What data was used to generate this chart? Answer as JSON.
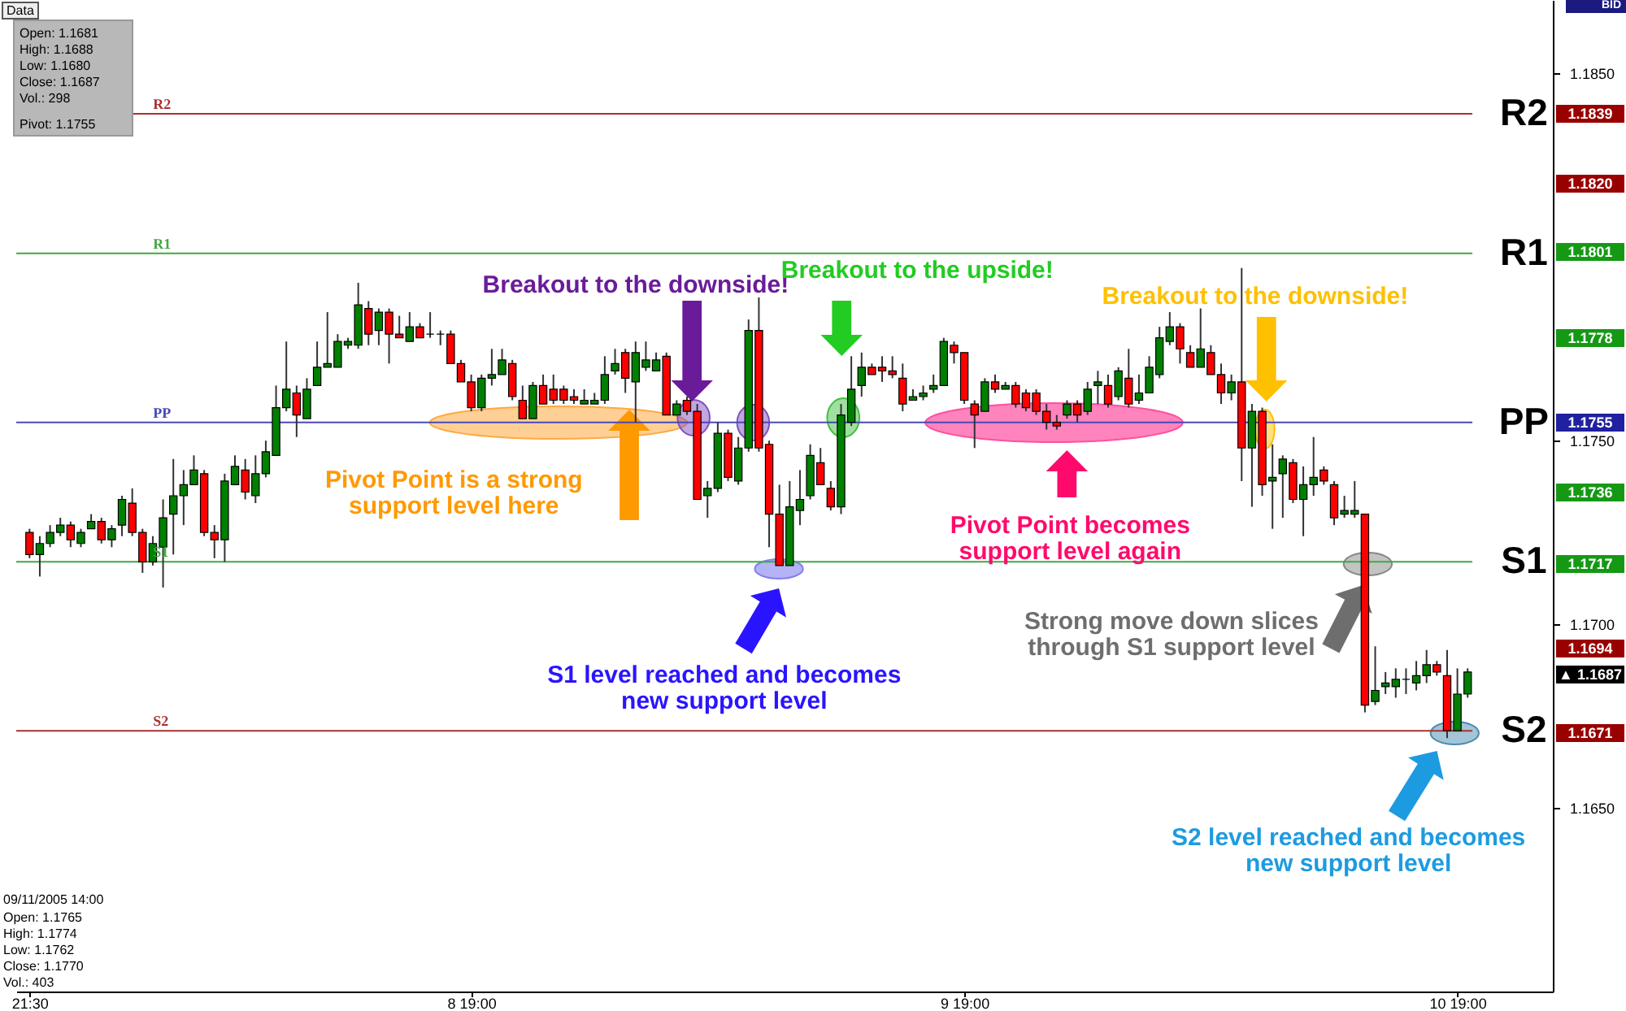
{
  "chart_data": {
    "type": "candlestick",
    "categories": [
      "21:30",
      null,
      null,
      null,
      null,
      null,
      null,
      null,
      null,
      null,
      null,
      null,
      null,
      null,
      null,
      null,
      null,
      null,
      null,
      null,
      null,
      null,
      null,
      null,
      null,
      null,
      null,
      null,
      null,
      null,
      null,
      null,
      null,
      null,
      null,
      null,
      null,
      null,
      null,
      null,
      null,
      null,
      null,
      "8 19:00",
      null,
      null,
      null,
      null,
      null,
      null,
      null,
      null,
      null,
      null,
      null,
      null,
      null,
      null,
      null,
      null,
      null,
      null,
      null,
      null,
      null,
      null,
      null,
      null,
      null,
      null,
      null,
      null,
      null,
      null,
      null,
      null,
      null,
      null,
      null,
      null,
      null,
      null,
      null,
      null,
      null,
      null,
      null,
      null,
      null,
      null,
      null,
      "9 19:00",
      null,
      null,
      null,
      null,
      null,
      null,
      null,
      null,
      null,
      null,
      null,
      null,
      null,
      null,
      null,
      null,
      null,
      null,
      null,
      null,
      null,
      null,
      null,
      null,
      null,
      null,
      null,
      null,
      null,
      null,
      null,
      null,
      null,
      null,
      null,
      null,
      null,
      null,
      null,
      null,
      null,
      null,
      null,
      null,
      null,
      null,
      null,
      "10 19:00",
      null,
      null,
      null,
      null,
      null,
      null,
      null,
      null
    ],
    "ohlc": [
      [
        1.1725,
        1.1726,
        1.1718,
        1.1719
      ],
      [
        1.1719,
        1.1724,
        1.1713,
        1.1722
      ],
      [
        1.1722,
        1.1727,
        1.1721,
        1.1725
      ],
      [
        1.1725,
        1.1729,
        1.1724,
        1.1727
      ],
      [
        1.1727,
        1.1728,
        1.1721,
        1.1723
      ],
      [
        1.1722,
        1.1726,
        1.1721,
        1.1725
      ],
      [
        1.1726,
        1.173,
        1.1726,
        1.1728
      ],
      [
        1.1728,
        1.1729,
        1.1722,
        1.1723
      ],
      [
        1.1723,
        1.1727,
        1.1721,
        1.1726
      ],
      [
        1.1727,
        1.1735,
        1.1724,
        1.1734
      ],
      [
        1.1733,
        1.1737,
        1.1724,
        1.1725
      ],
      [
        1.1725,
        1.1726,
        1.1714,
        1.1717
      ],
      [
        1.1717,
        1.1724,
        1.1716,
        1.1722
      ],
      [
        1.1721,
        1.1734,
        1.171,
        1.1729
      ],
      [
        1.173,
        1.1745,
        1.1719,
        1.1735
      ],
      [
        1.1735,
        1.1742,
        1.1727,
        1.1738
      ],
      [
        1.1738,
        1.1746,
        1.1738,
        1.1742
      ],
      [
        1.1741,
        1.1742,
        1.1724,
        1.1725
      ],
      [
        1.1725,
        1.1727,
        1.1718,
        1.1723
      ],
      [
        1.1723,
        1.1741,
        1.1717,
        1.1739
      ],
      [
        1.1738,
        1.1746,
        1.1738,
        1.1743
      ],
      [
        1.1742,
        1.1745,
        1.1734,
        1.1736
      ],
      [
        1.1735,
        1.1746,
        1.1733,
        1.1741
      ],
      [
        1.1741,
        1.175,
        1.174,
        1.1747
      ],
      [
        1.1746,
        1.1765,
        1.1746,
        1.1759
      ],
      [
        1.1759,
        1.1777,
        1.1758,
        1.1764
      ],
      [
        1.1763,
        1.1765,
        1.1751,
        1.1757
      ],
      [
        1.1756,
        1.1767,
        1.1756,
        1.1764
      ],
      [
        1.1765,
        1.1777,
        1.1765,
        1.177
      ],
      [
        1.177,
        1.1785,
        1.177,
        1.1771
      ],
      [
        1.177,
        1.1779,
        1.177,
        1.1777
      ],
      [
        1.1776,
        1.1778,
        1.1775,
        1.1777
      ],
      [
        1.1776,
        1.1793,
        1.1775,
        1.1787
      ],
      [
        1.1786,
        1.1788,
        1.1776,
        1.1779
      ],
      [
        1.178,
        1.1786,
        1.1776,
        1.1785
      ],
      [
        1.1785,
        1.1786,
        1.1771,
        1.1779
      ],
      [
        1.1779,
        1.1784,
        1.1778,
        1.1778
      ],
      [
        1.1777,
        1.1785,
        1.1777,
        1.1781
      ],
      [
        1.1781,
        1.1782,
        1.1778,
        1.1778
      ],
      [
        1.1779,
        1.1785,
        1.1778,
        1.1779
      ],
      [
        1.1779,
        1.178,
        1.1776,
        1.1779
      ],
      [
        1.1779,
        1.178,
        1.1771,
        1.1771
      ],
      [
        1.1771,
        1.1772,
        1.1766,
        1.1766
      ],
      [
        1.1766,
        1.1768,
        1.1758,
        1.1759
      ],
      [
        1.1759,
        1.1768,
        1.1758,
        1.1767
      ],
      [
        1.1767,
        1.1775,
        1.1765,
        1.1768
      ],
      [
        1.1768,
        1.1775,
        1.1768,
        1.1772
      ],
      [
        1.1771,
        1.1772,
        1.1761,
        1.1762
      ],
      [
        1.1761,
        1.1765,
        1.1756,
        1.1756
      ],
      [
        1.1756,
        1.1766,
        1.1756,
        1.1765
      ],
      [
        1.1765,
        1.1768,
        1.176,
        1.176
      ],
      [
        1.1764,
        1.1768,
        1.176,
        1.1761
      ],
      [
        1.1764,
        1.1765,
        1.176,
        1.1761
      ],
      [
        1.1762,
        1.1764,
        1.176,
        1.1761
      ],
      [
        1.176,
        1.1764,
        1.176,
        1.1761
      ],
      [
        1.176,
        1.1763,
        1.176,
        1.1761
      ],
      [
        1.1761,
        1.1773,
        1.176,
        1.1768
      ],
      [
        1.1769,
        1.1775,
        1.1768,
        1.1771
      ],
      [
        1.1774,
        1.1775,
        1.1763,
        1.1767
      ],
      [
        1.1766,
        1.1777,
        1.1755,
        1.1774
      ],
      [
        1.177,
        1.1777,
        1.1769,
        1.1772
      ],
      [
        1.1769,
        1.1774,
        1.1769,
        1.1772
      ],
      [
        1.1773,
        1.1774,
        1.1757,
        1.1757
      ],
      [
        1.1757,
        1.1761,
        1.1757,
        1.176
      ],
      [
        1.1761,
        1.1762,
        1.1757,
        1.1758
      ],
      [
        1.1758,
        1.176,
        1.1734,
        1.1734
      ],
      [
        1.1735,
        1.1739,
        1.1729,
        1.1737
      ],
      [
        1.1737,
        1.1755,
        1.1736,
        1.1752
      ],
      [
        1.1752,
        1.1753,
        1.1739,
        1.174
      ],
      [
        1.1739,
        1.1751,
        1.1738,
        1.1748
      ],
      [
        1.1748,
        1.1783,
        1.1747,
        1.178
      ],
      [
        1.178,
        1.1789,
        1.1747,
        1.1748
      ],
      [
        1.1749,
        1.175,
        1.1721,
        1.173
      ],
      [
        1.173,
        1.1738,
        1.1716,
        1.1716
      ],
      [
        1.1716,
        1.1739,
        1.1716,
        1.1732
      ],
      [
        1.1731,
        1.1742,
        1.1727,
        1.1734
      ],
      [
        1.1735,
        1.1749,
        1.1734,
        1.1746
      ],
      [
        1.1744,
        1.1748,
        1.1738,
        1.1738
      ],
      [
        1.1737,
        1.1739,
        1.1731,
        1.1732
      ],
      [
        1.1732,
        1.176,
        1.173,
        1.1757
      ],
      [
        1.1755,
        1.1773,
        1.1754,
        1.1764
      ],
      [
        1.1765,
        1.1774,
        1.1762,
        1.177
      ],
      [
        1.177,
        1.1771,
        1.1768,
        1.1768
      ],
      [
        1.177,
        1.1773,
        1.1766,
        1.1769
      ],
      [
        1.1769,
        1.1773,
        1.1767,
        1.1768
      ],
      [
        1.1767,
        1.1771,
        1.1758,
        1.176
      ],
      [
        1.1761,
        1.1764,
        1.1761,
        1.1762
      ],
      [
        1.1762,
        1.1765,
        1.1761,
        1.1763
      ],
      [
        1.1764,
        1.1768,
        1.1763,
        1.1765
      ],
      [
        1.1765,
        1.1778,
        1.1765,
        1.1777
      ],
      [
        1.1776,
        1.1777,
        1.1771,
        1.1774
      ],
      [
        1.1774,
        1.1774,
        1.176,
        1.1761
      ],
      [
        1.176,
        1.1761,
        1.1748,
        1.1757
      ],
      [
        1.1758,
        1.1767,
        1.1758,
        1.1766
      ],
      [
        1.1766,
        1.1768,
        1.1763,
        1.1764
      ],
      [
        1.1764,
        1.1766,
        1.1764,
        1.1765
      ],
      [
        1.1765,
        1.1766,
        1.1759,
        1.176
      ],
      [
        1.1763,
        1.1764,
        1.1758,
        1.1759
      ],
      [
        1.1763,
        1.1764,
        1.1757,
        1.1758
      ],
      [
        1.1758,
        1.176,
        1.1753,
        1.1755
      ],
      [
        1.1755,
        1.1757,
        1.1753,
        1.1754
      ],
      [
        1.1757,
        1.1761,
        1.1756,
        1.176
      ],
      [
        1.176,
        1.1761,
        1.1755,
        1.1757
      ],
      [
        1.1758,
        1.1766,
        1.1757,
        1.1764
      ],
      [
        1.1765,
        1.1769,
        1.176,
        1.1766
      ],
      [
        1.1765,
        1.1768,
        1.1759,
        1.176
      ],
      [
        1.1762,
        1.177,
        1.1761,
        1.1769
      ],
      [
        1.1767,
        1.1775,
        1.1759,
        1.176
      ],
      [
        1.1761,
        1.1768,
        1.176,
        1.1763
      ],
      [
        1.1763,
        1.1773,
        1.1763,
        1.177
      ],
      [
        1.1768,
        1.1781,
        1.1767,
        1.1778
      ],
      [
        1.1777,
        1.1785,
        1.1776,
        1.1781
      ],
      [
        1.1781,
        1.1782,
        1.1771,
        1.1775
      ],
      [
        1.1774,
        1.1776,
        1.177,
        1.177
      ],
      [
        1.177,
        1.1786,
        1.177,
        1.1775
      ],
      [
        1.1774,
        1.1776,
        1.1768,
        1.1768
      ],
      [
        1.1768,
        1.1771,
        1.176,
        1.1763
      ],
      [
        1.1763,
        1.1768,
        1.1761,
        1.1766
      ],
      [
        1.1766,
        1.1797,
        1.1739,
        1.1748
      ],
      [
        1.1748,
        1.176,
        1.1732,
        1.1758
      ],
      [
        1.1758,
        1.1759,
        1.1735,
        1.1738
      ],
      [
        1.1739,
        1.1749,
        1.1726,
        1.174
      ],
      [
        1.1741,
        1.1746,
        1.1729,
        1.1745
      ],
      [
        1.1744,
        1.1745,
        1.1733,
        1.1734
      ],
      [
        1.1734,
        1.1743,
        1.1724,
        1.1738
      ],
      [
        1.1738,
        1.1751,
        1.1735,
        1.174
      ],
      [
        1.1742,
        1.1743,
        1.1738,
        1.1739
      ],
      [
        1.1738,
        1.1739,
        1.1727,
        1.1729
      ],
      [
        1.173,
        1.1735,
        1.1729,
        1.1731
      ],
      [
        1.173,
        1.1739,
        1.1729,
        1.1731
      ],
      [
        1.173,
        1.173,
        1.1676,
        1.1678
      ],
      [
        1.1679,
        1.1694,
        1.1678,
        1.1682
      ],
      [
        1.1683,
        1.1687,
        1.1681,
        1.1684
      ],
      [
        1.1683,
        1.1688,
        1.168,
        1.1685
      ],
      [
        1.1685,
        1.1688,
        1.1681,
        1.1685
      ],
      [
        1.1684,
        1.169,
        1.1682,
        1.1686
      ],
      [
        1.1686,
        1.1693,
        1.1684,
        1.1689
      ],
      [
        1.1689,
        1.169,
        1.1686,
        1.1687
      ],
      [
        1.1686,
        1.1693,
        1.1669,
        1.1671
      ],
      [
        1.1671,
        1.1688,
        1.1671,
        1.1681
      ],
      [
        1.1681,
        1.1688,
        1.168,
        1.1687
      ],
      null,
      null,
      null,
      null,
      null,
      null,
      null
    ],
    "ylim": [
      1.16,
      1.187
    ],
    "yticks": [
      {
        "value": 1.165,
        "label": "1.1650"
      },
      {
        "value": 1.17,
        "label": "1.1700"
      },
      {
        "value": 1.175,
        "label": "1.1750"
      },
      {
        "value": 1.185,
        "label": "1.1850"
      }
    ],
    "ref_lines": [
      {
        "axis": "y",
        "value": 1.1839,
        "label": "R2",
        "color": "#a83232"
      },
      {
        "axis": "y",
        "value": 1.1801,
        "label": "R1",
        "color": "#3faa3f"
      },
      {
        "axis": "y",
        "value": 1.1755,
        "label": "PP",
        "color": "#4848b8"
      },
      {
        "axis": "y",
        "value": 1.1717,
        "label": "S1",
        "color": "#3faa3f"
      },
      {
        "axis": "y",
        "value": 1.1671,
        "label": "S2",
        "color": "#a83232"
      }
    ],
    "annotations": [
      "Breakout to the downside!",
      "Breakout to the upside!",
      "Breakout to the downside!",
      "Pivot Point is a strong support level here",
      "Pivot Point becomes support level again",
      "S1 level reached and becomes new support level",
      "Strong move down slices through S1 support level",
      "S2 level reached and becomes new support level",
      "Data",
      "Open: 1.1681",
      "High: 1.1688",
      "Low: 1.1680",
      "Close: 1.1687",
      "Vol.: 298",
      "Pivot: 1.1755",
      "09/11/2005 14:00",
      "Open: 1.1765",
      "High: 1.1774",
      "Low: 1.1762",
      "Close: 1.1770",
      "Vol.: 403",
      "BID",
      "1.1839",
      "1.1820",
      "1.1801",
      "1.1778",
      "1.1755",
      "1.1736",
      "1.1717",
      "1.1694",
      "▲ 1.1687",
      "1.1671"
    ]
  }
}
